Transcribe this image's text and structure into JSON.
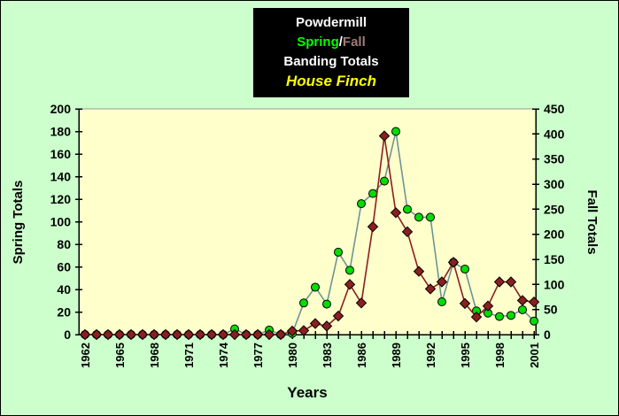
{
  "window": {
    "background": "#ccffcc",
    "plot_background": "#ffffcc",
    "frame_color": "#000000",
    "plot_top_border_color": "#999999"
  },
  "title_block": {
    "background": "#000000",
    "line1": {
      "text": "Powdermill",
      "color": "#ffffff"
    },
    "line2": {
      "spring": "Spring",
      "spring_color": "#00ff00",
      "separator": "/",
      "separator_color": "#ffffff",
      "fall": "Fall",
      "fall_color": "#9e7b7b"
    },
    "line3": {
      "text": "Banding Totals",
      "color": "#ffffff"
    },
    "line4": {
      "text": "House Finch",
      "color": "#ffff00"
    }
  },
  "chart_data": {
    "type": "line",
    "x": [
      1962,
      1963,
      1964,
      1965,
      1966,
      1967,
      1968,
      1969,
      1970,
      1971,
      1972,
      1973,
      1974,
      1975,
      1976,
      1977,
      1978,
      1979,
      1980,
      1981,
      1982,
      1983,
      1984,
      1985,
      1986,
      1987,
      1988,
      1989,
      1990,
      1991,
      1992,
      1993,
      1994,
      1995,
      1996,
      1997,
      1998,
      1999,
      2000,
      2001
    ],
    "x_axis": {
      "title": "Years",
      "tick_every": 1,
      "tick_label_every": 3
    },
    "left_axis": {
      "title": "Spring Totals",
      "min": 0,
      "max": 200,
      "step": 20
    },
    "right_axis": {
      "title": "Fall Totals",
      "min": 0,
      "max": 450,
      "step": 50
    },
    "grid": "off",
    "legend_position": "title-block-colors",
    "series": [
      {
        "name": "Spring",
        "axis": "left",
        "marker": "circle",
        "marker_fill": "#00dd00",
        "marker_stroke": "#000000",
        "line_color": "#6b9595",
        "values": [
          0,
          0,
          0,
          0,
          0,
          0,
          0,
          0,
          0,
          0,
          0,
          0,
          0,
          5,
          0,
          0,
          4,
          0,
          1,
          28,
          42,
          27,
          73,
          57,
          116,
          125,
          136,
          180,
          111,
          104,
          104,
          29,
          64,
          58,
          21,
          19,
          16,
          17,
          22,
          12
        ]
      },
      {
        "name": "Fall",
        "axis": "right",
        "marker": "diamond",
        "marker_fill": "#8b1f1f",
        "marker_stroke": "#000000",
        "line_color": "#8b1f1f",
        "values": [
          0,
          0,
          0,
          0,
          0,
          0,
          0,
          0,
          0,
          0,
          0,
          0,
          0,
          0,
          0,
          0,
          0,
          0,
          7,
          8,
          22,
          17,
          37,
          100,
          63,
          215,
          396,
          243,
          205,
          126,
          91,
          105,
          144,
          62,
          35,
          57,
          105,
          105,
          68,
          65
        ]
      }
    ]
  }
}
